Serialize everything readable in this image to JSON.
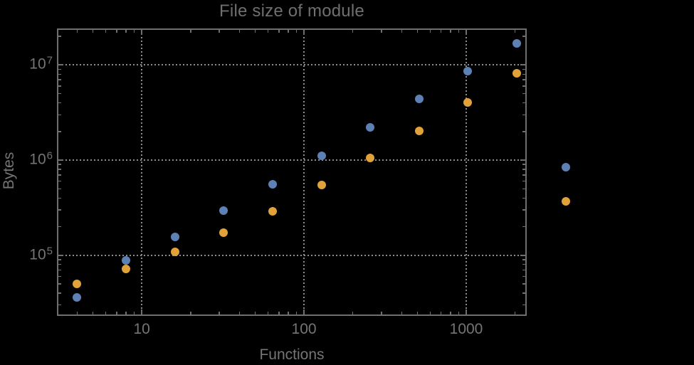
{
  "styles": {
    "background": "#000000",
    "frame_color": "#6F6F6F",
    "grid_color": "#8C8C8C",
    "text_color": "#757575",
    "title_color": "#6F6F6F",
    "series_blue": "#5E81B5",
    "series_orange": "#E2A23A"
  },
  "chart_data": {
    "type": "scatter",
    "title": "File size of module",
    "xlabel": "Functions",
    "ylabel": "Bytes",
    "x_scale": "log",
    "y_scale": "log",
    "grid": "dotted-major",
    "legend": "none",
    "marker_size_px": 12,
    "xlim": [
      3.0,
      2360
    ],
    "ylim": [
      23000,
      24270000
    ],
    "x": [
      4,
      8,
      16,
      32,
      64,
      128,
      256,
      512,
      1024,
      2048,
      4096
    ],
    "series": [
      {
        "name": "series-blue",
        "color": "#5E81B5",
        "values": [
          35800,
          88200,
          155000,
          294000,
          554000,
          1110000,
          2210000,
          4410000,
          8640000,
          16900000,
          843000
        ]
      },
      {
        "name": "series-orange",
        "color": "#E2A23A",
        "values": [
          50200,
          72100,
          109000,
          173000,
          291000,
          548000,
          1060000,
          2030000,
          4050000,
          8200000,
          369000
        ]
      }
    ],
    "x_ticks": [
      {
        "value": 10,
        "label": "10"
      },
      {
        "value": 100,
        "label": "100"
      },
      {
        "value": 1000,
        "label": "1000"
      }
    ],
    "y_ticks": [
      {
        "value": 100000,
        "base": "10",
        "exponent": "5"
      },
      {
        "value": 1000000,
        "base": "10",
        "exponent": "6"
      },
      {
        "value": 10000000,
        "base": "10",
        "exponent": "7"
      }
    ]
  }
}
